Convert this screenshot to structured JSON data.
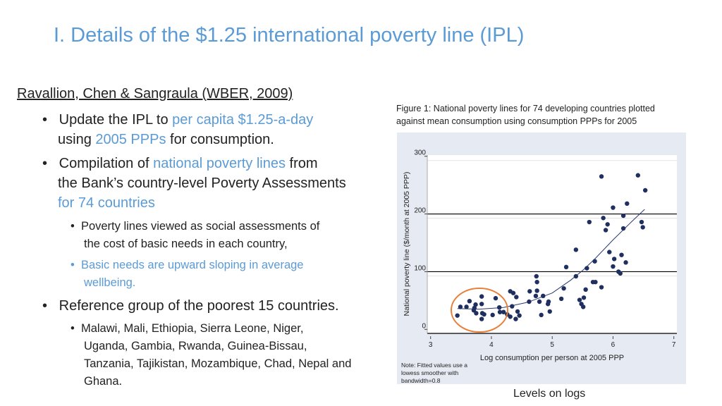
{
  "title": "I. Details of the $1.25 international poverty line (IPL)",
  "heading": "Ravallion, Chen & Sangraula (WBER, 2009)",
  "bullets": {
    "b1_line1_a": "Update the IPL to ",
    "b1_line1_b": "per capita $1.25-a-day",
    "b1_line2_a": "using ",
    "b1_line2_b": "2005 PPPs",
    "b1_line2_c": " for consumption.",
    "b2_line1_a": "Compilation of ",
    "b2_line1_b": "national poverty lines",
    "b2_line1_c": " from",
    "b2_line2": "the Bank’s country-level Poverty Assessments",
    "b2_line3": "for 74 countries",
    "s1_line1": "Poverty lines viewed as social assessments of",
    "s1_line2": "the cost of basic needs in each country,",
    "s2_line1": "Basic needs are upward sloping in average",
    "s2_line2": "wellbeing.",
    "b3": "Reference group of the poorest 15 countries.",
    "s3_line1": "Malawi, Mali, Ethiopia, Sierra Leone, Niger,",
    "s3_line2": "Uganda, Gambia, Rwanda, Guinea-Bissau,",
    "s3_line3": "Tanzania, Tajikistan, Mozambique, Chad, Nepal and",
    "s3_line4": "Ghana."
  },
  "caption_line1": "Figure 1: National poverty lines for 74 developing countries plotted",
  "caption_line2": "against mean consumption using consumption PPPs for 2005",
  "levels_label": "Levels on logs",
  "colors": {
    "accent": "#5b9bd5",
    "points": "#1f2f5f",
    "highlight_ellipse": "#e8803a",
    "figure_bg": "#e6eaf3"
  },
  "chart_data": {
    "type": "scatter",
    "xlabel": "Log consumption per person at 2005 PPP",
    "ylabel": "National poverty line ($/month at 2005 PPP)",
    "xlim": [
      3,
      7
    ],
    "ylim": [
      0,
      300
    ],
    "xticks": [
      "3",
      "4",
      "5",
      "6",
      "7"
    ],
    "yticks": [
      "0",
      "100",
      "200",
      "300"
    ],
    "reference_lines_y": [
      100,
      200
    ],
    "note_line1": "Note: Fitted values use a",
    "note_line2": "lowess smoother with",
    "note_line3": "bandwidth=0.8",
    "points": [
      [
        3.44,
        24
      ],
      [
        3.49,
        39
      ],
      [
        3.59,
        39
      ],
      [
        3.64,
        49
      ],
      [
        3.71,
        33
      ],
      [
        3.72,
        37
      ],
      [
        3.74,
        43
      ],
      [
        3.75,
        28
      ],
      [
        3.84,
        57
      ],
      [
        3.84,
        44
      ],
      [
        3.84,
        18
      ],
      [
        3.85,
        28
      ],
      [
        3.88,
        26
      ],
      [
        4.02,
        25
      ],
      [
        4.07,
        54
      ],
      [
        4.13,
        38
      ],
      [
        4.14,
        30
      ],
      [
        4.2,
        30
      ],
      [
        4.26,
        26
      ],
      [
        4.31,
        66
      ],
      [
        4.31,
        22
      ],
      [
        4.34,
        40
      ],
      [
        4.36,
        63
      ],
      [
        4.4,
        18
      ],
      [
        4.41,
        56
      ],
      [
        4.43,
        31
      ],
      [
        4.46,
        24
      ],
      [
        4.62,
        48
      ],
      [
        4.63,
        66
      ],
      [
        4.73,
        58
      ],
      [
        4.74,
        92
      ],
      [
        4.75,
        82
      ],
      [
        4.75,
        67
      ],
      [
        4.79,
        48
      ],
      [
        4.82,
        25
      ],
      [
        4.85,
        58
      ],
      [
        4.93,
        44
      ],
      [
        4.94,
        48
      ],
      [
        4.96,
        31
      ],
      [
        5.15,
        53
      ],
      [
        5.19,
        71
      ],
      [
        5.23,
        108
      ],
      [
        5.39,
        138
      ],
      [
        5.39,
        92
      ],
      [
        5.45,
        51
      ],
      [
        5.48,
        44
      ],
      [
        5.51,
        39
      ],
      [
        5.52,
        55
      ],
      [
        5.55,
        69
      ],
      [
        5.57,
        106
      ],
      [
        5.61,
        186
      ],
      [
        5.67,
        82
      ],
      [
        5.7,
        118
      ],
      [
        5.71,
        82
      ],
      [
        5.81,
        73
      ],
      [
        5.81,
        265
      ],
      [
        5.84,
        193
      ],
      [
        5.88,
        172
      ],
      [
        5.91,
        182
      ],
      [
        5.94,
        134
      ],
      [
        6.0,
        211
      ],
      [
        6.0,
        109
      ],
      [
        6.02,
        122
      ],
      [
        6.09,
        100
      ],
      [
        6.12,
        97
      ],
      [
        6.14,
        129
      ],
      [
        6.17,
        197
      ],
      [
        6.17,
        175
      ],
      [
        6.21,
        116
      ],
      [
        6.23,
        218
      ],
      [
        6.41,
        267
      ],
      [
        6.47,
        186
      ],
      [
        6.49,
        177
      ],
      [
        6.53,
        241
      ]
    ],
    "fitted_lowess": [
      [
        3.44,
        36
      ],
      [
        3.8,
        35
      ],
      [
        4.2,
        38
      ],
      [
        4.6,
        47
      ],
      [
        5.0,
        63
      ],
      [
        5.3,
        85
      ],
      [
        5.5,
        102
      ],
      [
        5.7,
        122
      ],
      [
        6.0,
        155
      ],
      [
        6.3,
        186
      ],
      [
        6.52,
        208
      ]
    ],
    "highlight": {
      "label": "poorest 15 countries",
      "x_range": [
        3.4,
        4.2
      ]
    }
  }
}
